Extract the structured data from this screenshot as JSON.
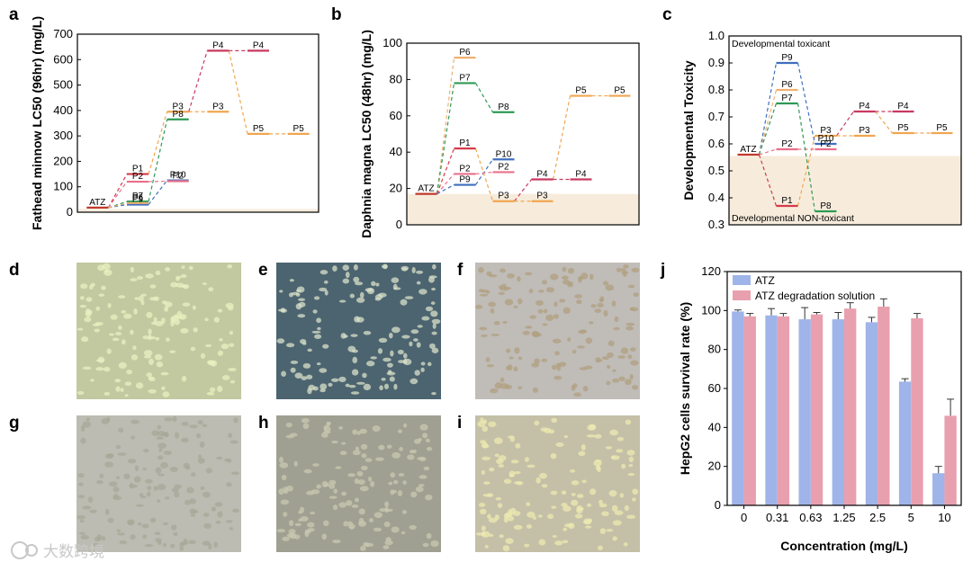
{
  "panel_labels": [
    "a",
    "b",
    "c",
    "d",
    "e",
    "f",
    "g",
    "h",
    "i",
    "j"
  ],
  "watermark": "大数跨境",
  "colors": {
    "ATZ": "#c0392b",
    "P1": "#d63a4a",
    "P2": "#e8708a",
    "P3": "#f0a650",
    "P4": "#c83a60",
    "P5": "#f0a650",
    "P6": "#f0b070",
    "P7": "#2e9a55",
    "P8": "#2e9a55",
    "P9": "#3f6fbf",
    "P10": "#3f6fbf",
    "bar_atz": "#9fb4e8",
    "bar_deg": "#e8a0ae",
    "band": "#f7ecdc"
  },
  "chart_data": [
    {
      "panel": "a",
      "type": "line",
      "ylabel": "Fathead minnow LC50 (96hr) (mg/L)",
      "ylim": [
        0,
        700
      ],
      "yticks": [
        "0",
        "100",
        "200",
        "300",
        "400",
        "500",
        "600",
        "700"
      ],
      "band_max": 13,
      "levels": [
        {
          "name": "ATZ",
          "stage": 0,
          "value": 18
        },
        {
          "name": "P1",
          "stage": 1,
          "value": 150
        },
        {
          "name": "P2",
          "stage": 1,
          "value": 120
        },
        {
          "name": "P7",
          "stage": 1,
          "value": 42
        },
        {
          "name": "P9",
          "stage": 1,
          "value": 30
        },
        {
          "name": "P6",
          "stage": 1,
          "value": 36
        },
        {
          "name": "P3",
          "stage": 2,
          "value": 395
        },
        {
          "name": "P8",
          "stage": 2,
          "value": 365
        },
        {
          "name": "P10",
          "stage": 2,
          "value": 125
        },
        {
          "name": "P2",
          "stage": 2,
          "value": 122
        },
        {
          "name": "P4",
          "stage": 3,
          "value": 635
        },
        {
          "name": "P3",
          "stage": 3,
          "value": 395
        },
        {
          "name": "P5",
          "stage": 4,
          "value": 308
        },
        {
          "name": "P4",
          "stage": 4,
          "value": 635
        },
        {
          "name": "P5",
          "stage": 5,
          "value": 308
        }
      ]
    },
    {
      "panel": "b",
      "type": "line",
      "ylabel": "Daphnia magna LC50 (48hr) (mg/L)",
      "ylim": [
        0,
        100
      ],
      "yticks": [
        "0",
        "20",
        "40",
        "60",
        "80",
        "100"
      ],
      "band_max": 17,
      "levels": [
        {
          "name": "ATZ",
          "stage": 0,
          "value": 17
        },
        {
          "name": "P6",
          "stage": 1,
          "value": 92
        },
        {
          "name": "P7",
          "stage": 1,
          "value": 78
        },
        {
          "name": "P1",
          "stage": 1,
          "value": 42
        },
        {
          "name": "P2",
          "stage": 1,
          "value": 28
        },
        {
          "name": "P9",
          "stage": 1,
          "value": 22
        },
        {
          "name": "P8",
          "stage": 2,
          "value": 62
        },
        {
          "name": "P10",
          "stage": 2,
          "value": 36
        },
        {
          "name": "P2",
          "stage": 2,
          "value": 29
        },
        {
          "name": "P3",
          "stage": 2,
          "value": 13
        },
        {
          "name": "P4",
          "stage": 3,
          "value": 25
        },
        {
          "name": "P3",
          "stage": 3,
          "value": 13
        },
        {
          "name": "P5",
          "stage": 4,
          "value": 71
        },
        {
          "name": "P4",
          "stage": 4,
          "value": 25
        },
        {
          "name": "P5",
          "stage": 5,
          "value": 71
        }
      ]
    },
    {
      "panel": "c",
      "type": "line",
      "ylabel": "Developmental Toxicity",
      "ylim": [
        0.3,
        1.0
      ],
      "yticks": [
        "0.3",
        "0.4",
        "0.5",
        "0.6",
        "0.7",
        "0.8",
        "0.9",
        "1.0"
      ],
      "band_max": 0.555,
      "annotations": [
        "Developmental toxicant",
        "Developmental NON-toxicant"
      ],
      "levels": [
        {
          "name": "ATZ",
          "stage": 0,
          "value": 0.56
        },
        {
          "name": "P9",
          "stage": 1,
          "value": 0.9
        },
        {
          "name": "P6",
          "stage": 1,
          "value": 0.8
        },
        {
          "name": "P7",
          "stage": 1,
          "value": 0.75
        },
        {
          "name": "P2",
          "stage": 1,
          "value": 0.58
        },
        {
          "name": "P1",
          "stage": 1,
          "value": 0.37
        },
        {
          "name": "P3",
          "stage": 2,
          "value": 0.63
        },
        {
          "name": "P10",
          "stage": 2,
          "value": 0.6
        },
        {
          "name": "P2",
          "stage": 2,
          "value": 0.58
        },
        {
          "name": "P8",
          "stage": 2,
          "value": 0.35
        },
        {
          "name": "P4",
          "stage": 3,
          "value": 0.72
        },
        {
          "name": "P3",
          "stage": 3,
          "value": 0.63
        },
        {
          "name": "P5",
          "stage": 4,
          "value": 0.64
        },
        {
          "name": "P4",
          "stage": 4,
          "value": 0.72
        },
        {
          "name": "P5",
          "stage": 5,
          "value": 0.64
        }
      ]
    },
    {
      "panel": "j",
      "type": "bar",
      "ylabel": "HepG2 cells survival rate (%)",
      "xlabel": "Concentration (mg/L)",
      "ylim": [
        0,
        120
      ],
      "yticks": [
        "0",
        "20",
        "40",
        "60",
        "80",
        "100",
        "120"
      ],
      "categories": [
        "0",
        "0.31",
        "0.63",
        "1.25",
        "2.5",
        "5",
        "10"
      ],
      "legend_position": "top-left",
      "series": [
        {
          "name": "ATZ",
          "values": [
            99.5,
            97.5,
            95.5,
            95.5,
            94,
            63.5,
            16.5
          ],
          "errors": [
            0.8,
            3.5,
            6,
            3.5,
            2.5,
            1.5,
            3.5
          ]
        },
        {
          "name": "ATZ degradation solution",
          "values": [
            97,
            97,
            98,
            101,
            102,
            96,
            46
          ],
          "errors": [
            1.5,
            1.5,
            1,
            3,
            4,
            2.5,
            8.5
          ]
        }
      ]
    }
  ],
  "micrographs": [
    {
      "panel": "d",
      "tone": "#c2c8a0",
      "cell": "#e8f0c0"
    },
    {
      "panel": "e",
      "tone": "#4c6470",
      "cell": "#d8e0c8"
    },
    {
      "panel": "f",
      "tone": "#c0bcb8",
      "cell": "#b0a080"
    },
    {
      "panel": "g",
      "tone": "#bcbcb2",
      "cell": "#a8a898"
    },
    {
      "panel": "h",
      "tone": "#a0a092",
      "cell": "#c8c8b0"
    },
    {
      "panel": "i",
      "tone": "#c4c0a8",
      "cell": "#eeeab0"
    }
  ]
}
